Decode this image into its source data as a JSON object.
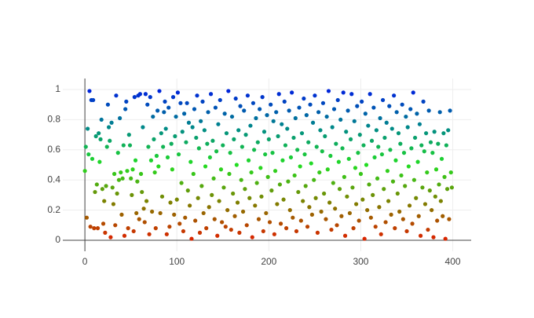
{
  "chart_data": {
    "type": "scatter",
    "xlim": [
      -24,
      420
    ],
    "ylim": [
      -0.073,
      1.073
    ],
    "xticks": [
      0,
      100,
      200,
      300,
      400
    ],
    "yticks": [
      0,
      0.2,
      0.4,
      0.6,
      0.8,
      1
    ],
    "grid": true,
    "colorscale": [
      [
        0,
        "#dd2200"
      ],
      [
        0.25,
        "#7f7f00"
      ],
      [
        0.5,
        "#22dd22"
      ],
      [
        0.75,
        "#00888a"
      ],
      [
        1,
        "#0022dd"
      ]
    ],
    "x": [
      0,
      1,
      2,
      3,
      4,
      5,
      6,
      7,
      8,
      9,
      10,
      11,
      12,
      13,
      14,
      15,
      16,
      17,
      18,
      19,
      20,
      21,
      22,
      23,
      24,
      25,
      26,
      27,
      28,
      29,
      30,
      31,
      32,
      33,
      34,
      35,
      36,
      37,
      38,
      39,
      40,
      41,
      42,
      43,
      44,
      45,
      46,
      47,
      48,
      49,
      50,
      51,
      52,
      53,
      54,
      55,
      56,
      57,
      58,
      59,
      60,
      61,
      62,
      63,
      64,
      65,
      66,
      67,
      68,
      69,
      70,
      71,
      72,
      73,
      74,
      75,
      76,
      77,
      78,
      79,
      80,
      81,
      82,
      83,
      84,
      85,
      86,
      87,
      88,
      89,
      90,
      91,
      92,
      93,
      94,
      95,
      96,
      97,
      98,
      99,
      100,
      101,
      102,
      103,
      104,
      105,
      106,
      107,
      108,
      109,
      110,
      111,
      112,
      113,
      114,
      115,
      116,
      117,
      118,
      119,
      120,
      121,
      122,
      123,
      124,
      125,
      126,
      127,
      128,
      129,
      130,
      131,
      132,
      133,
      134,
      135,
      136,
      137,
      138,
      139,
      140,
      141,
      142,
      143,
      144,
      145,
      146,
      147,
      148,
      149,
      150,
      151,
      152,
      153,
      154,
      155,
      156,
      157,
      158,
      159,
      160,
      161,
      162,
      163,
      164,
      165,
      166,
      167,
      168,
      169,
      170,
      171,
      172,
      173,
      174,
      175,
      176,
      177,
      178,
      179,
      180,
      181,
      182,
      183,
      184,
      185,
      186,
      187,
      188,
      189,
      190,
      191,
      192,
      193,
      194,
      195,
      196,
      197,
      198,
      199,
      200,
      201,
      202,
      203,
      204,
      205,
      206,
      207,
      208,
      209,
      210,
      211,
      212,
      213,
      214,
      215,
      216,
      217,
      218,
      219,
      220,
      221,
      222,
      223,
      224,
      225,
      226,
      227,
      228,
      229,
      230,
      231,
      232,
      233,
      234,
      235,
      236,
      237,
      238,
      239,
      240,
      241,
      242,
      243,
      244,
      245,
      246,
      247,
      248,
      249,
      250,
      251,
      252,
      253,
      254,
      255,
      256,
      257,
      258,
      259,
      260,
      261,
      262,
      263,
      264,
      265,
      266,
      267,
      268,
      269,
      270,
      271,
      272,
      273,
      274,
      275,
      276,
      277,
      278,
      279,
      280,
      281,
      282,
      283,
      284,
      285,
      286,
      287,
      288,
      289,
      290,
      291,
      292,
      293,
      294,
      295,
      296,
      297,
      298,
      299,
      300,
      301,
      302,
      303,
      304,
      305,
      306,
      307,
      308,
      309,
      310,
      311,
      312,
      313,
      314,
      315,
      316,
      317,
      318,
      319,
      320,
      321,
      322,
      323,
      324,
      325,
      326,
      327,
      328,
      329,
      330,
      331,
      332,
      333,
      334,
      335,
      336,
      337,
      338,
      339,
      340,
      341,
      342,
      343,
      344,
      345,
      346,
      347,
      348,
      349,
      350,
      351,
      352,
      353,
      354,
      355,
      356,
      357,
      358,
      359,
      360,
      361,
      362,
      363,
      364,
      365,
      366,
      367,
      368,
      369,
      370,
      371,
      372,
      373,
      374,
      375,
      376,
      377,
      378,
      379,
      380,
      381,
      382,
      383,
      384,
      385,
      386,
      387,
      388,
      389,
      390,
      391,
      392,
      393,
      394,
      395,
      396,
      397,
      398,
      399
    ],
    "values": [
      0.46,
      0.62,
      0.15,
      0.74,
      0.57,
      0.99,
      0.09,
      0.93,
      0.54,
      0.93,
      0.08,
      0.32,
      0.69,
      0.37,
      0.08,
      0.71,
      0.52,
      0.67,
      0.8,
      0.34,
      0.11,
      0.26,
      0.05,
      0.36,
      0.62,
      0.9,
      0.75,
      0.66,
      0.02,
      0.78,
      0.35,
      0.24,
      0.44,
      0.1,
      0.96,
      0.31,
      0.58,
      0.4,
      0.81,
      0.45,
      0.17,
      0.41,
      0.63,
      0.03,
      0.87,
      0.92,
      0.46,
      0.08,
      0.7,
      0.63,
      0.41,
      0.3,
      0.47,
      0.06,
      0.95,
      0.53,
      0.18,
      0.39,
      0.96,
      0.14,
      0.97,
      0.44,
      0.32,
      0.75,
      0.21,
      0.12,
      0.97,
      0.26,
      0.9,
      0.62,
      0.04,
      0.95,
      0.53,
      0.19,
      0.82,
      0.67,
      0.45,
      0.08,
      0.56,
      0.86,
      0.49,
      0.99,
      0.18,
      0.71,
      0.29,
      0.62,
      0.85,
      0.92,
      0.74,
      0.04,
      0.55,
      0.88,
      0.09,
      0.25,
      0.64,
      0.47,
      0.95,
      0.17,
      0.69,
      0.82,
      0.27,
      0.98,
      0.57,
      0.11,
      0.91,
      0.38,
      0.72,
      0.06,
      0.84,
      0.15,
      0.65,
      0.91,
      0.33,
      0.78,
      0.23,
      0.52,
      0.01,
      0.75,
      0.44,
      0.87,
      0.13,
      0.68,
      0.96,
      0.28,
      0.61,
      0.05,
      0.79,
      0.36,
      0.92,
      0.18,
      0.73,
      0.49,
      0.08,
      0.64,
      0.85,
      0.22,
      0.55,
      0.97,
      0.3,
      0.66,
      0.41,
      0.14,
      0.88,
      0.59,
      0.03,
      0.77,
      0.26,
      0.93,
      0.47,
      0.12,
      0.63,
      0.35,
      0.84,
      0.09,
      0.71,
      0.2,
      0.99,
      0.44,
      0.58,
      0.07,
      0.82,
      0.31,
      0.67,
      0.16,
      0.94,
      0.5,
      0.25,
      0.73,
      0.05,
      0.89,
      0.4,
      0.62,
      0.19,
      0.86,
      0.34,
      0.7,
      0.1,
      0.96,
      0.53,
      0.28,
      0.76,
      0.45,
      0.02,
      0.91,
      0.6,
      0.23,
      0.81,
      0.38,
      0.65,
      0.14,
      0.87,
      0.48,
      0.29,
      0.95,
      0.06,
      0.72,
      0.57,
      0.18,
      0.83,
      0.42,
      0.67,
      0.12,
      0.9,
      0.33,
      0.58,
      0.79,
      0.04,
      0.46,
      0.85,
      0.24,
      0.69,
      0.97,
      0.37,
      0.11,
      0.77,
      0.53,
      0.27,
      0.92,
      0.63,
      0.08,
      0.74,
      0.39,
      0.86,
      0.2,
      0.55,
      0.98,
      0.15,
      0.68,
      0.43,
      0.81,
      0.06,
      0.6,
      0.32,
      0.88,
      0.49,
      0.13,
      0.71,
      0.26,
      0.94,
      0.57,
      0.36,
      0.83,
      0.09,
      0.65,
      0.22,
      0.9,
      0.51,
      0.17,
      0.78,
      0.4,
      0.96,
      0.28,
      0.62,
      0.05,
      0.85,
      0.45,
      0.73,
      0.19,
      0.59,
      0.91,
      0.31,
      0.69,
      0.14,
      0.82,
      0.47,
      0.99,
      0.25,
      0.56,
      0.07,
      0.75,
      0.38,
      0.87,
      0.21,
      0.64,
      0.1,
      0.93,
      0.52,
      0.34,
      0.8,
      0.16,
      0.61,
      0.98,
      0.42,
      0.03,
      0.72,
      0.29,
      0.86,
      0.54,
      0.18,
      0.67,
      0.97,
      0.35,
      0.08,
      0.79,
      0.48,
      0.24,
      0.89,
      0.58,
      0.13,
      0.7,
      0.44,
      0.92,
      0.27,
      0.63,
      0.01,
      0.84,
      0.5,
      0.2,
      0.76,
      0.37,
      0.97,
      0.15,
      0.66,
      0.3,
      0.88,
      0.55,
      0.09,
      0.73,
      0.41,
      0.62,
      0.22,
      0.81,
      0.04,
      0.57,
      0.93,
      0.34,
      0.68,
      0.12,
      0.78,
      0.46,
      0.26,
      0.89,
      0.6,
      0.17,
      0.74,
      0.39,
      0.96,
      0.08,
      0.53,
      0.85,
      0.31,
      0.71,
      0.19,
      0.64,
      0.43,
      0.9,
      0.14,
      0.58,
      0.36,
      0.82,
      0.06,
      0.75,
      0.49,
      0.23,
      0.87,
      0.61,
      0.11,
      0.98,
      0.4,
      0.68,
      0.28,
      0.84,
      0.52,
      0.16,
      0.77,
      0.03,
      0.63,
      0.35,
      0.92,
      0.59,
      0.24,
      0.71,
      0.45,
      0.07,
      0.86,
      0.33,
      0.65,
      0.2,
      0.58,
      0.02,
      0.72,
      0.29,
      0.47,
      0.13,
      0.64,
      0.37,
      0.85,
      0.26,
      0.54,
      0.16,
      0.71,
      0.42,
      0.01,
      0.63,
      0.34,
      0.73,
      0.14,
      0.86,
      0.45,
      0.35
    ]
  }
}
